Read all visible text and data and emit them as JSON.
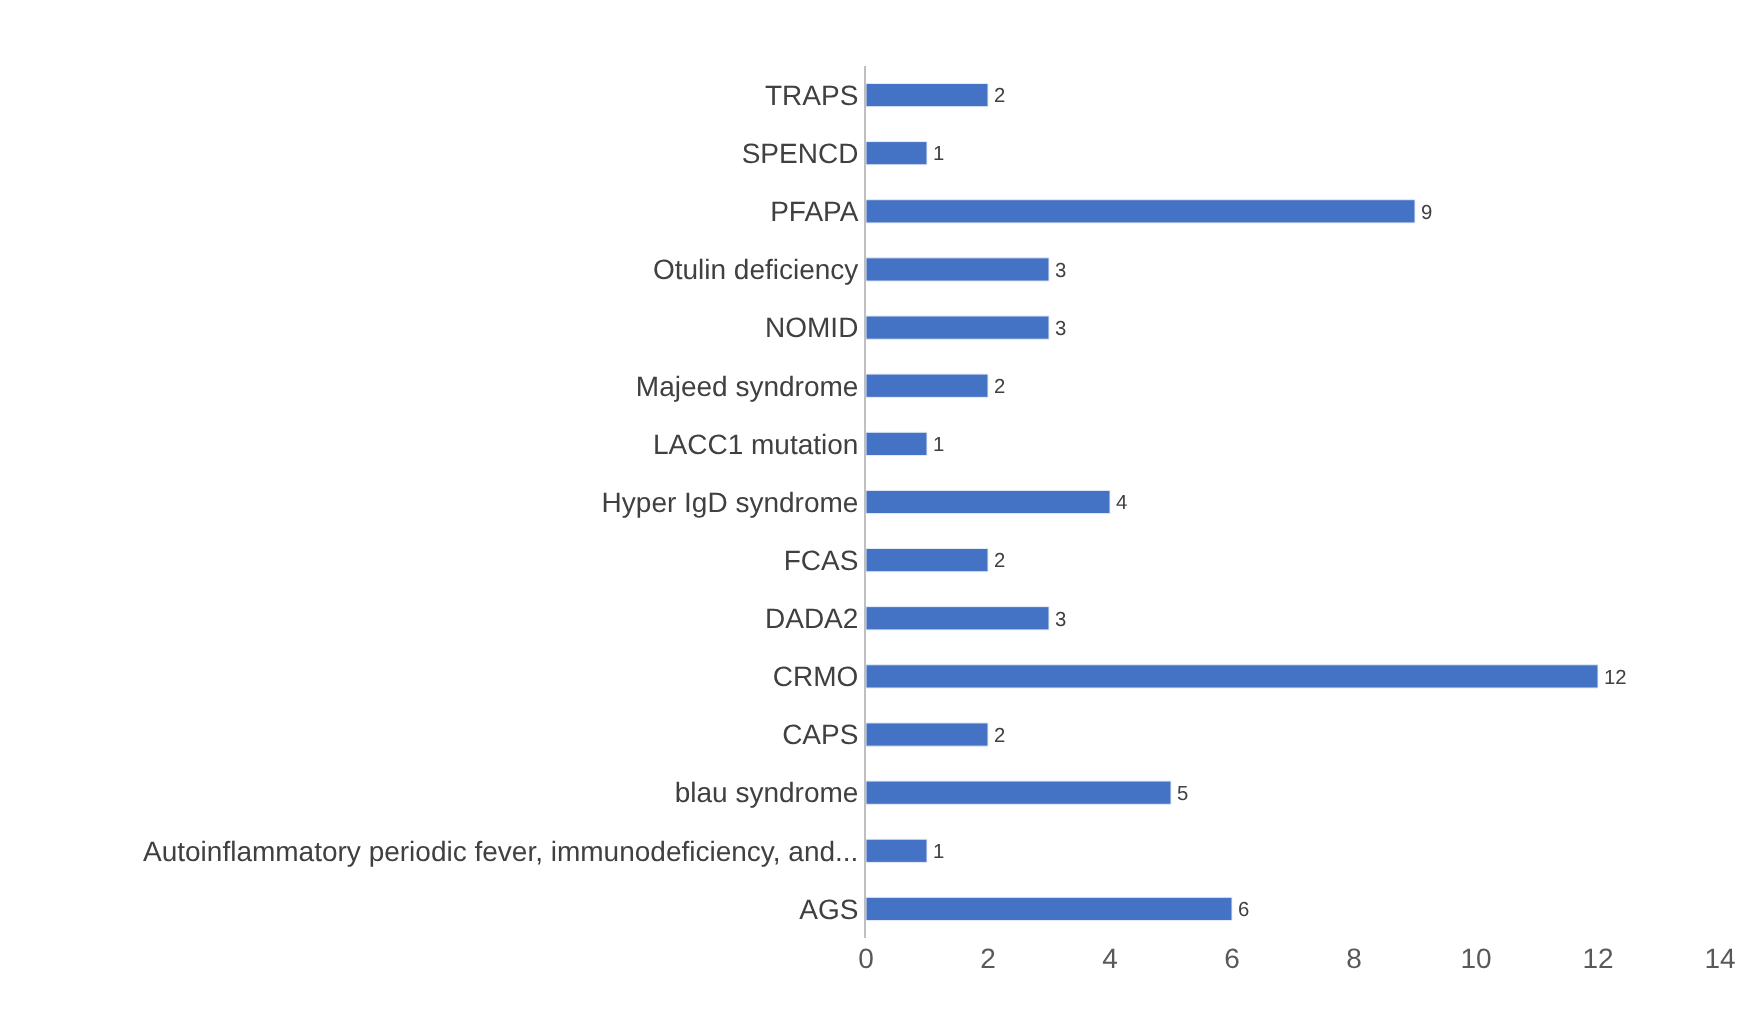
{
  "chart_data": {
    "type": "bar",
    "orientation": "horizontal",
    "categories": [
      "TRAPS",
      "SPENCD",
      "PFAPA",
      "Otulin deficiency",
      "NOMID",
      "Majeed syndrome",
      "LACC1 mutation",
      "Hyper IgD syndrome",
      "FCAS",
      "DADA2",
      "CRMO",
      "CAPS",
      "blau syndrome",
      "Autoinflammatory periodic fever, immunodeficiency, and...",
      "AGS"
    ],
    "values": [
      2,
      1,
      9,
      3,
      3,
      2,
      1,
      4,
      2,
      3,
      12,
      2,
      5,
      1,
      6
    ],
    "color": "#4472c4",
    "xlim": [
      0,
      14
    ],
    "xticks": [
      0,
      2,
      4,
      6,
      8,
      10,
      12,
      14
    ],
    "grid": false,
    "legend": false,
    "data_labels": true
  }
}
